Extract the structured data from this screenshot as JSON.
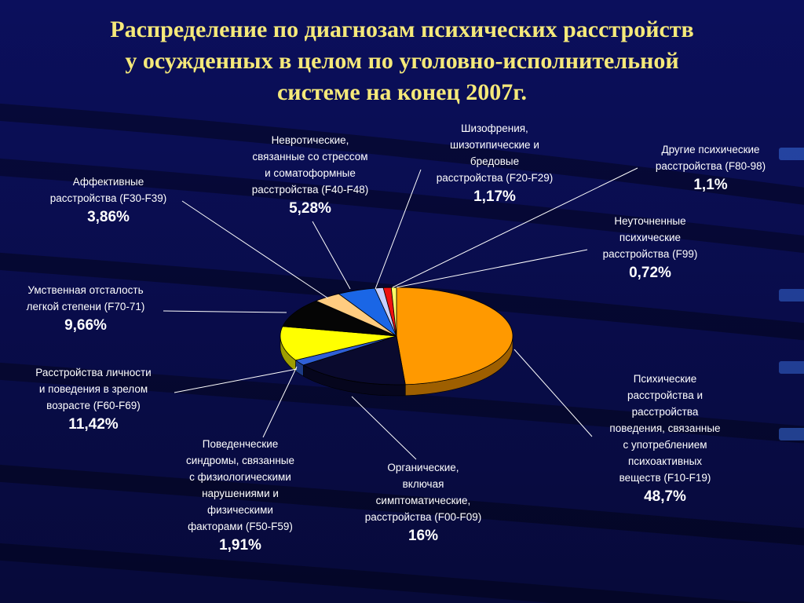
{
  "title": {
    "line1": "Распределение по диагнозам психических расстройств",
    "line2": "у осужденных в целом по уголовно-исполнительной",
    "line3": "системе на конец 2007г."
  },
  "chart_data": {
    "type": "pie",
    "title": "Распределение по диагнозам психических расстройств у осужденных в целом по уголовно-исполнительной системе на конец 2007г.",
    "unit": "%",
    "slices": [
      {
        "key": "f10",
        "label_lines": [
          "Психические",
          "расстройства и",
          "расстройства",
          "поведения, связанные",
          "с употреблением",
          "психоактивных",
          "веществ (F10-F19)"
        ],
        "value": 48.7,
        "pct": "48,7%",
        "color": "#ff9900"
      },
      {
        "key": "f00",
        "label_lines": [
          "Органические,",
          "включая",
          "симптоматические,",
          "расстройства (F00-F09)"
        ],
        "value": 16,
        "pct": "16%",
        "color": "#0a0a2e"
      },
      {
        "key": "f50",
        "label_lines": [
          "Поведенческие",
          "синдромы, связанные",
          "с физиологическими",
          "нарушениями и",
          "физическими",
          "факторами (F50-F59)"
        ],
        "value": 1.91,
        "pct": "1,91%",
        "color": "#2f5fd6"
      },
      {
        "key": "f60",
        "label_lines": [
          "Расстройства личности",
          "и поведения в зрелом",
          "возрасте (F60-F69)"
        ],
        "value": 11.42,
        "pct": "11,42%",
        "color": "#ffff00"
      },
      {
        "key": "f70",
        "label_lines": [
          "Умственная отсталость",
          "легкой степени (F70-71)"
        ],
        "value": 9.66,
        "pct": "9,66%",
        "color": "#050505"
      },
      {
        "key": "f30",
        "label_lines": [
          "Аффективные",
          "расстройства (F30-F39)"
        ],
        "value": 3.86,
        "pct": "3,86%",
        "color": "#ffcc80"
      },
      {
        "key": "f40",
        "label_lines": [
          "Невротические,",
          "связанные со стрессом",
          "и соматоформные",
          "расстройства (F40-F48)"
        ],
        "value": 5.28,
        "pct": "5,28%",
        "color": "#1a66e6"
      },
      {
        "key": "f20",
        "label_lines": [
          "Шизофрения,",
          "шизотипические и",
          "бредовые",
          "расстройства (F20-F29)"
        ],
        "value": 1.17,
        "pct": "1,17%",
        "color": "#c8d0ff"
      },
      {
        "key": "f80",
        "label_lines": [
          "Другие психические",
          "расстройства (F80-98)"
        ],
        "value": 1.1,
        "pct": "1,1%",
        "color": "#ee1111"
      },
      {
        "key": "f99",
        "label_lines": [
          "Неуточненные",
          "психические",
          "расстройства (F99)"
        ],
        "value": 0.72,
        "pct": "0,72%",
        "color": "#ffff66"
      }
    ],
    "legend": "none",
    "grid": false
  }
}
